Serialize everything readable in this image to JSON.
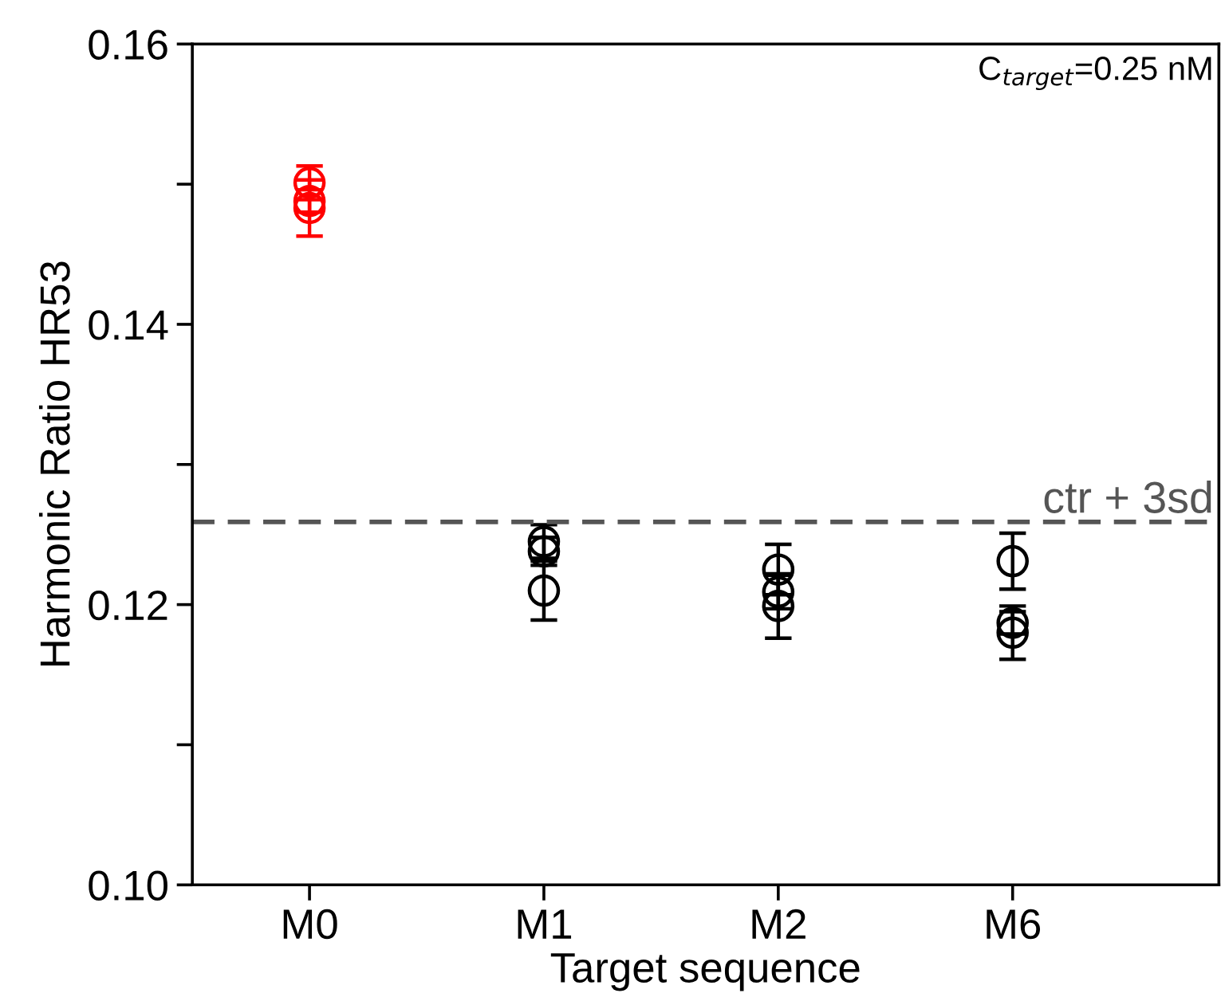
{
  "chart_data": {
    "type": "scatter",
    "xlabel": "Target sequence",
    "ylabel": "Harmonic Ratio HR53",
    "categories": [
      "M0",
      "M1",
      "M2",
      "M6"
    ],
    "series": [
      {
        "color": "#ff0000",
        "x": [
          "M0",
          "M0",
          "M0"
        ],
        "values": [
          0.1501,
          0.1488,
          0.1483
        ],
        "errors": [
          0.0012,
          0.0008,
          0.002
        ]
      },
      {
        "color": "#000000",
        "x": [
          "M1",
          "M1",
          "M1",
          "M2",
          "M2",
          "M2",
          "M6",
          "M6",
          "M6"
        ],
        "values": [
          0.1245,
          0.1238,
          0.121,
          0.1225,
          0.1209,
          0.1199,
          0.1231,
          0.1187,
          0.118
        ],
        "errors": [
          0.0012,
          0.001,
          0.0021,
          0.0018,
          0.0012,
          0.0023,
          0.002,
          0.0008,
          0.0019
        ]
      }
    ],
    "ylim": [
      0.1,
      0.16
    ],
    "yticks": [
      "0.10",
      {
        "value": 0.11,
        "label": null
      },
      {
        "value": 0.12,
        "label": "0.12"
      },
      {
        "value": 0.13,
        "label": null
      },
      {
        "value": 0.14,
        "label": "0.14"
      },
      {
        "value": 0.15,
        "label": null
      },
      {
        "value": 0.16,
        "label": "0.16"
      }
    ],
    "ref_lines": [
      {
        "axis": "y",
        "value": 0.1259,
        "label": "ctr + 3sd",
        "color": "#555555",
        "line_style": "dashed"
      }
    ],
    "annotations": [
      "C$_{target}$=0.25 nM"
    ],
    "marker": "circle",
    "grid": false,
    "legend": false
  }
}
